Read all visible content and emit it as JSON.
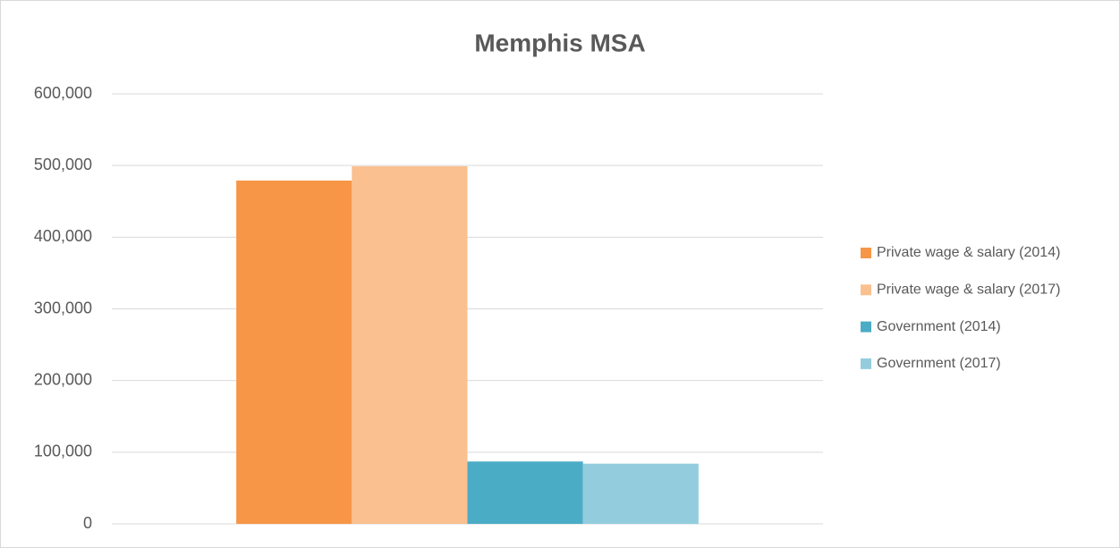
{
  "chart_data": {
    "type": "bar",
    "title": "Memphis MSA",
    "categories": [
      null
    ],
    "series": [
      {
        "name": "Private wage & salary (2014)",
        "color": "#f79646",
        "values": [
          479000
        ]
      },
      {
        "name": "Private wage & salary (2017)",
        "color": "#fac090",
        "values": [
          499000
        ]
      },
      {
        "name": "Government (2014)",
        "color": "#4bacc6",
        "values": [
          87000
        ]
      },
      {
        "name": "Government (2017)",
        "color": "#93cddd",
        "values": [
          84000
        ]
      }
    ],
    "ylim": [
      0,
      600000
    ],
    "yticks": [
      0,
      {
        "value": 100000,
        "label": "100,000"
      },
      {
        "value": 200000,
        "label": "200,000"
      },
      {
        "value": 300000,
        "label": "300,000"
      },
      {
        "value": 400000,
        "label": "400,000"
      },
      {
        "value": 500000,
        "label": "500,000"
      },
      {
        "value": 600000,
        "label": "600,000"
      }
    ],
    "grid": true,
    "legend": "right"
  }
}
